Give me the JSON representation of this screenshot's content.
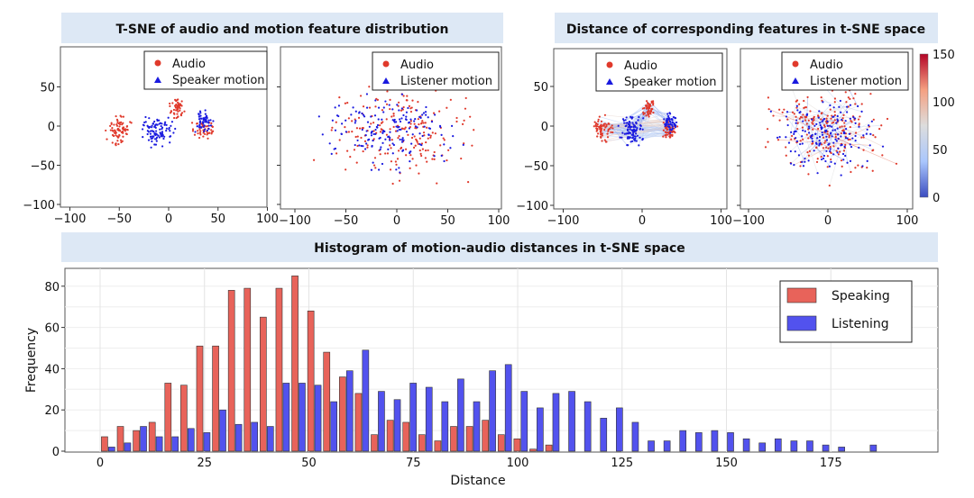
{
  "banners": {
    "tsne": "T-SNE of audio and motion feature distribution",
    "distance": "Distance of corresponding features in t-SNE space",
    "histogram": "Histogram of motion-audio distances in t-SNE space"
  },
  "chart_data": [
    {
      "type": "scatter",
      "legend": [
        "Audio",
        "Speaker motion"
      ],
      "legend_placement": "top-right",
      "colors": {
        "Audio": "#e0392b",
        "Speaker motion": "#1a1adf"
      },
      "xlim": [
        -110,
        100
      ],
      "ylim": [
        -105,
        95
      ],
      "xticks": [
        "−100",
        "−50",
        "0",
        "50",
        "100"
      ],
      "yticks": [
        "50",
        "0",
        "−50",
        "−100"
      ]
    },
    {
      "type": "scatter",
      "legend": [
        "Audio",
        "Listener motion"
      ],
      "legend_placement": "top-right",
      "colors": {
        "Audio": "#e0392b",
        "Listener motion": "#1a1adf"
      },
      "xlim": [
        -110,
        100
      ],
      "ylim": [
        -105,
        95
      ],
      "xticks": [
        "−100",
        "−50",
        "0",
        "50",
        "100"
      ]
    },
    {
      "type": "scatter",
      "legend": [
        "Audio",
        "Speaker motion"
      ],
      "legend_placement": "top-right",
      "xlim": [
        -110,
        100
      ],
      "ylim": [
        -105,
        95
      ],
      "xticks": [
        "−100",
        "0",
        "100"
      ],
      "yticks": [
        "50",
        "0",
        "−50",
        "−100"
      ]
    },
    {
      "type": "scatter",
      "legend": [
        "Audio",
        "Listener motion"
      ],
      "legend_placement": "top-right",
      "xlim": [
        -110,
        100
      ],
      "ylim": [
        -105,
        95
      ],
      "xticks": [
        "−100",
        "0",
        "100"
      ],
      "colorbar": {
        "range": [
          0,
          150
        ],
        "ticks": [
          "150",
          "100",
          "50",
          "0"
        ],
        "colormap": "coolwarm"
      }
    },
    {
      "type": "bar",
      "xlabel": "Distance",
      "ylabel": "Frequency",
      "xlim": [
        -8,
        196
      ],
      "ylim": [
        0,
        89
      ],
      "grid": true,
      "legend_placement": "top-right",
      "bin_width": 3.8,
      "xticks": [
        "0",
        "25",
        "50",
        "75",
        "100",
        "125",
        "150",
        "175"
      ],
      "yticks": [
        "0",
        "20",
        "40",
        "60",
        "80"
      ],
      "series": [
        {
          "name": "Speaking",
          "color": "#e8635a",
          "values": [
            7,
            12,
            10,
            14,
            33,
            32,
            51,
            51,
            78,
            79,
            65,
            79,
            85,
            68,
            48,
            36,
            28,
            8,
            15,
            14,
            8,
            5,
            12,
            12,
            15,
            8,
            6,
            1,
            3
          ]
        },
        {
          "name": "Listening",
          "color": "#5252ee",
          "values": [
            2,
            4,
            12,
            7,
            7,
            11,
            9,
            20,
            13,
            14,
            12,
            33,
            33,
            32,
            24,
            39,
            49,
            29,
            25,
            33,
            31,
            24,
            35,
            24,
            39,
            42,
            29,
            21,
            28,
            29,
            24,
            16,
            21,
            14,
            5,
            5,
            10,
            9,
            10,
            9,
            6,
            4,
            6,
            5,
            5,
            3,
            2,
            0,
            3
          ]
        }
      ]
    }
  ]
}
